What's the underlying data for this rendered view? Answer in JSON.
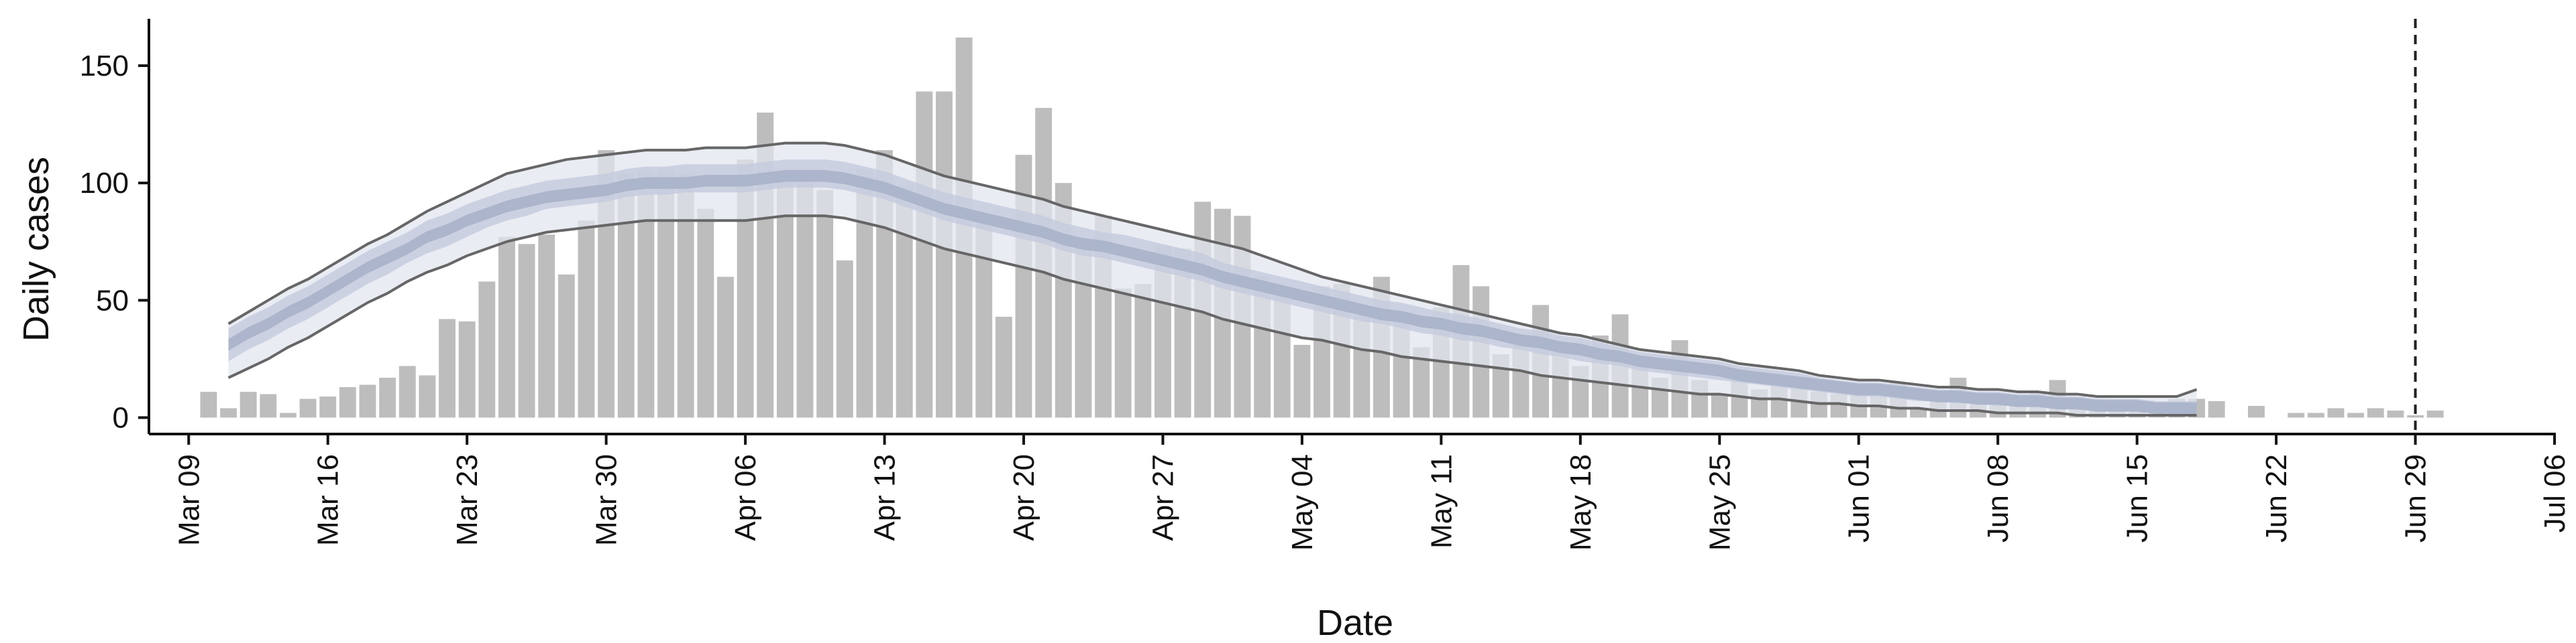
{
  "chart_data": {
    "type": "bar",
    "xlabel": "Date",
    "ylabel": "Daily cases",
    "ylim": [
      -7,
      170
    ],
    "xlim": [
      "2020-03-07",
      "2020-07-06"
    ],
    "grid": false,
    "yticks": [
      0,
      50,
      100,
      150
    ],
    "xticks": [
      {
        "date": "2020-03-09",
        "label": "Mar 09"
      },
      {
        "date": "2020-03-16",
        "label": "Mar 16"
      },
      {
        "date": "2020-03-23",
        "label": "Mar 23"
      },
      {
        "date": "2020-03-30",
        "label": "Mar 30"
      },
      {
        "date": "2020-04-06",
        "label": "Apr 06"
      },
      {
        "date": "2020-04-13",
        "label": "Apr 13"
      },
      {
        "date": "2020-04-20",
        "label": "Apr 20"
      },
      {
        "date": "2020-04-27",
        "label": "Apr 27"
      },
      {
        "date": "2020-05-04",
        "label": "May 04"
      },
      {
        "date": "2020-05-11",
        "label": "May 11"
      },
      {
        "date": "2020-05-18",
        "label": "May 18"
      },
      {
        "date": "2020-05-25",
        "label": "May 25"
      },
      {
        "date": "2020-06-01",
        "label": "Jun 01"
      },
      {
        "date": "2020-06-08",
        "label": "Jun 08"
      },
      {
        "date": "2020-06-15",
        "label": "Jun 15"
      },
      {
        "date": "2020-06-22",
        "label": "Jun 22"
      },
      {
        "date": "2020-06-29",
        "label": "Jun 29"
      },
      {
        "date": "2020-07-06",
        "label": "Jul 06"
      }
    ],
    "vline_date": "2020-06-29",
    "bars": {
      "start_date": "2020-03-10",
      "values": [
        11,
        4,
        11,
        10,
        2,
        8,
        9,
        13,
        14,
        17,
        22,
        18,
        42,
        41,
        58,
        77,
        74,
        78,
        61,
        84,
        114,
        104,
        105,
        106,
        104,
        89,
        60,
        110,
        130,
        103,
        100,
        97,
        67,
        106,
        114,
        99,
        139,
        139,
        162,
        86,
        43,
        112,
        132,
        100,
        75,
        86,
        55,
        57,
        73,
        72,
        92,
        89,
        86,
        60,
        55,
        31,
        56,
        57,
        43,
        60,
        45,
        30,
        47,
        65,
        56,
        27,
        33,
        48,
        28,
        22,
        35,
        44,
        26,
        17,
        33,
        16,
        10,
        21,
        12,
        15,
        13,
        11,
        10,
        10,
        12,
        15,
        4,
        10,
        17,
        7,
        6,
        10,
        11,
        16,
        9,
        8,
        7,
        5,
        5,
        8,
        8,
        7,
        0,
        5,
        0,
        2,
        2,
        4,
        2,
        4,
        3,
        1,
        3
      ]
    },
    "forecast": {
      "start_date": "2020-03-11",
      "median": [
        31,
        36,
        40,
        45,
        49,
        54,
        59,
        64,
        68,
        72,
        77,
        80,
        84,
        87,
        90,
        92,
        94,
        95,
        96,
        97,
        99,
        100,
        100,
        100,
        101,
        101,
        101,
        102,
        103,
        103,
        103,
        102,
        100,
        98,
        95,
        92,
        89,
        87,
        85,
        83,
        81,
        79,
        76,
        74,
        73,
        71,
        69,
        67,
        65,
        63,
        60,
        58,
        56,
        54,
        52,
        50,
        48,
        46,
        44,
        43,
        41,
        40,
        38,
        37,
        35,
        33,
        32,
        30,
        29,
        27,
        26,
        24,
        23,
        22,
        21,
        20,
        18,
        17,
        16,
        15,
        14,
        13,
        12,
        12,
        11,
        10,
        9,
        9,
        8,
        8,
        7,
        7,
        6,
        6,
        5,
        5,
        5,
        4,
        4,
        4
      ],
      "ci50_low": [
        24,
        29,
        33,
        38,
        42,
        47,
        52,
        57,
        61,
        66,
        70,
        73,
        77,
        81,
        84,
        86,
        89,
        90,
        91,
        92,
        94,
        95,
        95,
        96,
        96,
        96,
        96,
        97,
        98,
        98,
        98,
        97,
        95,
        93,
        90,
        87,
        84,
        82,
        80,
        78,
        76,
        74,
        71,
        69,
        68,
        66,
        64,
        62,
        60,
        58,
        55,
        53,
        51,
        49,
        47,
        45,
        43,
        41,
        40,
        38,
        36,
        35,
        33,
        32,
        30,
        29,
        27,
        26,
        24,
        23,
        22,
        20,
        19,
        18,
        17,
        16,
        15,
        14,
        13,
        12,
        11,
        10,
        9,
        9,
        8,
        7,
        7,
        6,
        6,
        5,
        5,
        5,
        4,
        4,
        3,
        3,
        3,
        3,
        2,
        2
      ],
      "ci50_high": [
        38,
        43,
        47,
        52,
        56,
        61,
        66,
        71,
        75,
        79,
        84,
        87,
        91,
        94,
        97,
        99,
        101,
        102,
        103,
        104,
        106,
        107,
        107,
        108,
        108,
        108,
        108,
        109,
        110,
        110,
        110,
        109,
        107,
        105,
        102,
        99,
        96,
        94,
        92,
        90,
        88,
        86,
        83,
        81,
        79,
        78,
        76,
        74,
        72,
        70,
        66,
        64,
        62,
        60,
        58,
        56,
        54,
        52,
        50,
        49,
        47,
        45,
        44,
        42,
        40,
        38,
        37,
        35,
        34,
        32,
        30,
        28,
        27,
        26,
        25,
        24,
        22,
        21,
        20,
        19,
        17,
        16,
        15,
        15,
        14,
        13,
        12,
        12,
        11,
        11,
        10,
        10,
        9,
        9,
        8,
        8,
        8,
        7,
        7,
        7
      ],
      "ci90_low": [
        17,
        21,
        25,
        30,
        34,
        39,
        44,
        49,
        53,
        58,
        62,
        65,
        69,
        72,
        75,
        77,
        79,
        80,
        81,
        82,
        83,
        84,
        84,
        84,
        84,
        84,
        84,
        85,
        86,
        86,
        86,
        85,
        83,
        81,
        78,
        75,
        72,
        70,
        68,
        66,
        64,
        62,
        59,
        57,
        55,
        53,
        51,
        49,
        47,
        45,
        42,
        40,
        38,
        36,
        34,
        33,
        31,
        29,
        28,
        26,
        25,
        24,
        23,
        22,
        21,
        20,
        18,
        17,
        16,
        15,
        14,
        13,
        12,
        11,
        10,
        10,
        9,
        8,
        8,
        7,
        6,
        6,
        5,
        5,
        4,
        4,
        3,
        3,
        3,
        2,
        2,
        2,
        2,
        1,
        1,
        1,
        1,
        1,
        1,
        1
      ],
      "ci90_high": [
        40,
        45,
        50,
        55,
        59,
        64,
        69,
        74,
        78,
        83,
        88,
        92,
        96,
        100,
        104,
        106,
        108,
        110,
        111,
        112,
        113,
        114,
        114,
        114,
        115,
        115,
        115,
        116,
        117,
        117,
        117,
        116,
        114,
        112,
        109,
        106,
        103,
        101,
        99,
        97,
        95,
        93,
        90,
        88,
        86,
        84,
        82,
        80,
        78,
        76,
        74,
        72,
        69,
        66,
        63,
        60,
        58,
        56,
        54,
        52,
        50,
        48,
        46,
        44,
        42,
        40,
        38,
        36,
        35,
        33,
        31,
        29,
        28,
        27,
        26,
        25,
        23,
        22,
        21,
        20,
        18,
        17,
        16,
        16,
        15,
        14,
        13,
        13,
        12,
        12,
        11,
        11,
        10,
        10,
        9,
        9,
        9,
        9,
        9,
        12
      ]
    },
    "colors": {
      "bars": "#bdbdbd",
      "ci90_fill": "#e2e5f0",
      "ci50_fill": "#c4cbdd",
      "median_fill": "#a6b0c8",
      "ci_line": "#666666",
      "axis": "#111111",
      "vline": "#222222"
    }
  }
}
